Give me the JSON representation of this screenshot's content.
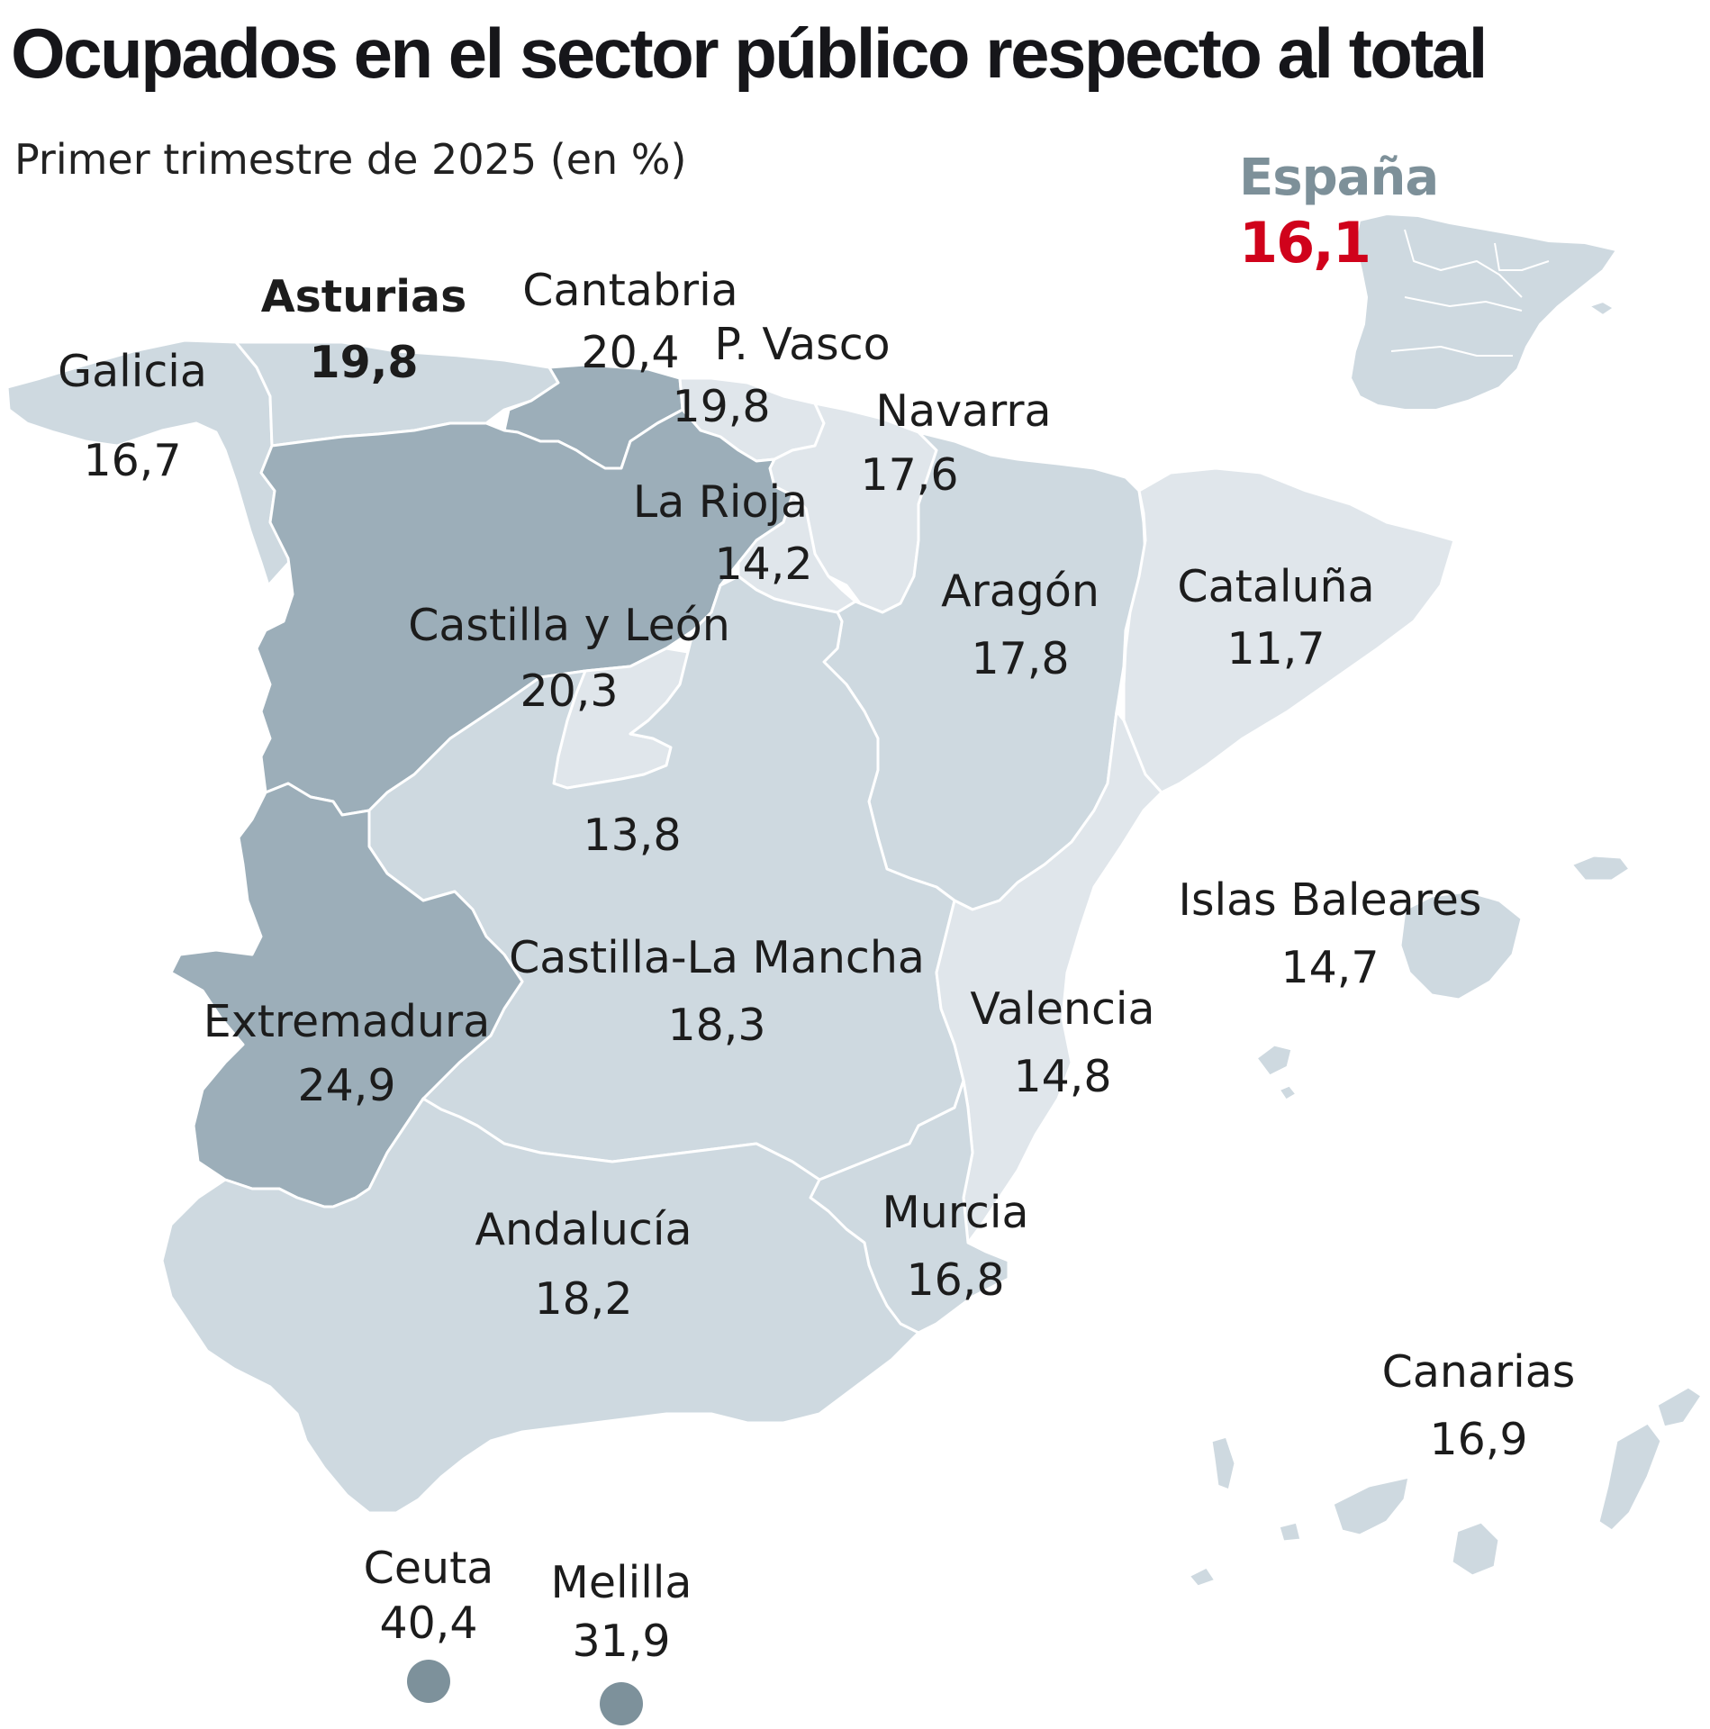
{
  "title": "Ocupados en el sector público respecto al total",
  "subtitle": "Primer trimestre de 2025 (en %)",
  "national": {
    "name": "España",
    "value": "16,1"
  },
  "colors": {
    "value_color": "#d0021b",
    "national_name": "#7d9099",
    "tier_high": "#9caeb9",
    "tier_mid": "#ced9e0",
    "tier_low": "#e0e6eb",
    "cities": "#7d919b",
    "borders": "#ffffff"
  },
  "regions": [
    {
      "name": "Galicia",
      "value": "16,7"
    },
    {
      "name": "Asturias",
      "value": "19,8"
    },
    {
      "name": "Cantabria",
      "value": "20,4"
    },
    {
      "name": "P. Vasco",
      "value": "19,8"
    },
    {
      "name": "Navarra",
      "value": "17,6"
    },
    {
      "name": "La Rioja",
      "value": "14,2"
    },
    {
      "name": "Castilla y León",
      "value": "20,3"
    },
    {
      "name": "Aragón",
      "value": "17,8"
    },
    {
      "name": "Cataluña",
      "value": "11,7"
    },
    {
      "name": "",
      "value": "13,8"
    },
    {
      "name": "Islas Baleares",
      "value": "14,7"
    },
    {
      "name": "Castilla-La Mancha",
      "value": "18,3"
    },
    {
      "name": "Valencia",
      "value": "14,8"
    },
    {
      "name": "Extremadura",
      "value": "24,9"
    },
    {
      "name": "Murcia",
      "value": "16,8"
    },
    {
      "name": "Andalucía",
      "value": "18,2"
    },
    {
      "name": "Canarias",
      "value": "16,9"
    },
    {
      "name": "Ceuta",
      "value": "40,4"
    },
    {
      "name": "Melilla",
      "value": "31,9"
    }
  ]
}
